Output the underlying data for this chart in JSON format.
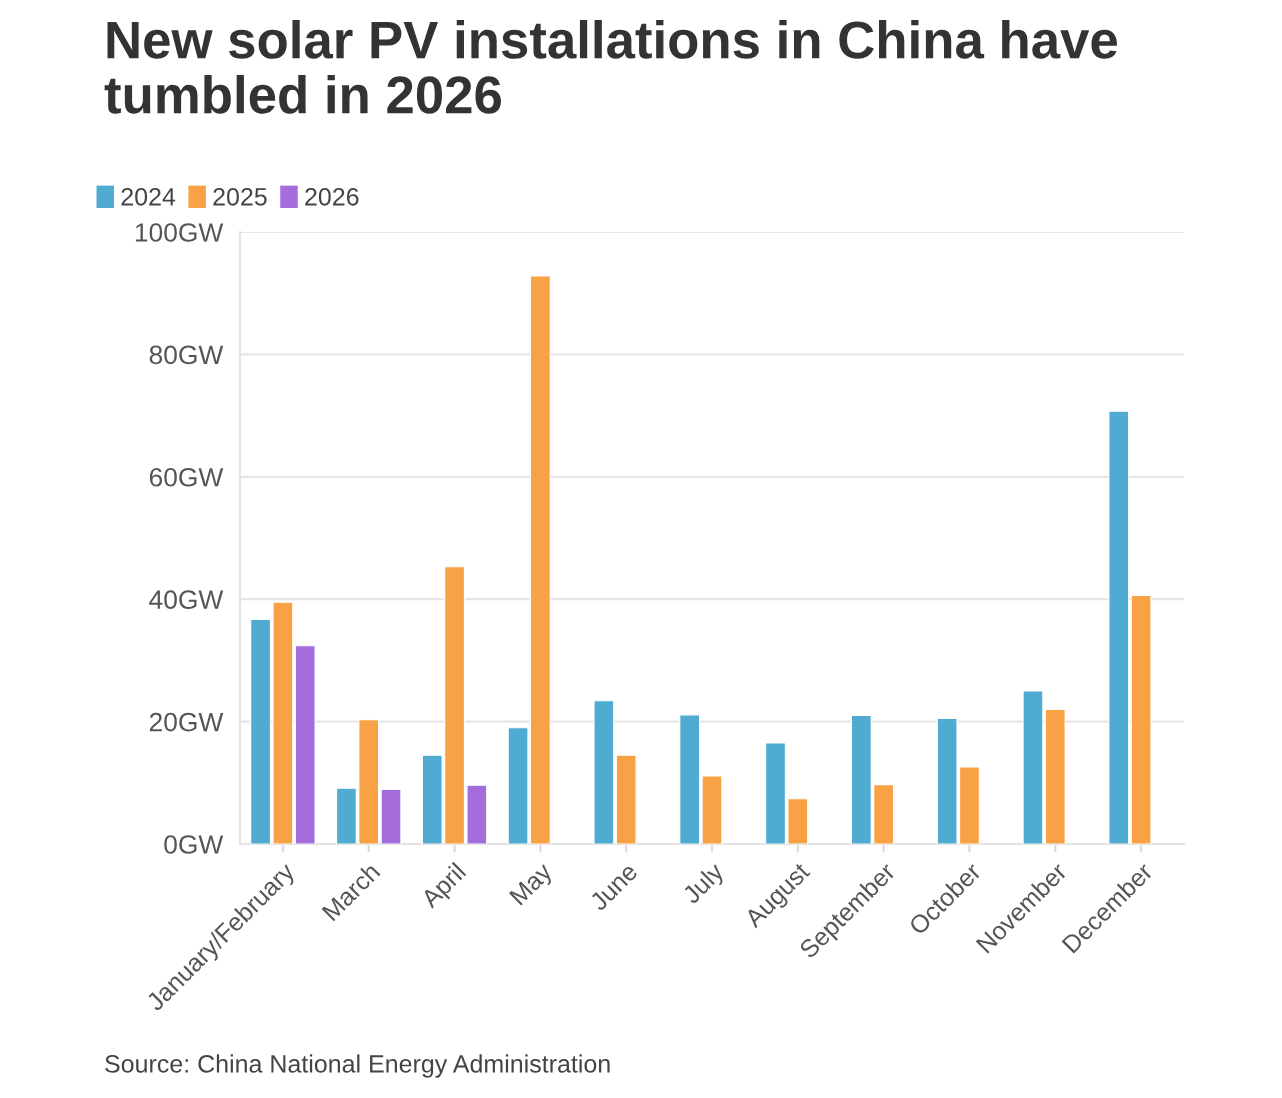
{
  "chart_data": {
    "type": "bar",
    "title": "New solar PV installations in China have tumbled in 2026",
    "categories": [
      "January/February",
      "March",
      "April",
      "May",
      "June",
      "July",
      "August",
      "September",
      "October",
      "November",
      "December"
    ],
    "series": [
      {
        "name": "2024",
        "color": "#4fabd1",
        "values": [
          36.7,
          9.1,
          14.5,
          19.0,
          23.4,
          21.1,
          16.5,
          21.0,
          20.5,
          25.0,
          70.7
        ]
      },
      {
        "name": "2025",
        "color": "#f9a245",
        "values": [
          39.5,
          20.3,
          45.3,
          92.8,
          14.5,
          11.1,
          7.4,
          9.7,
          12.6,
          22.0,
          40.6
        ]
      },
      {
        "name": "2026",
        "color": "#a56ddc",
        "values": [
          32.4,
          8.9,
          9.6,
          null,
          null,
          null,
          null,
          null,
          null,
          null,
          null
        ]
      }
    ],
    "ylim": [
      0,
      100
    ],
    "yticks": [
      {
        "value": 0,
        "label": "0GW"
      },
      {
        "value": 20,
        "label": "20GW"
      },
      {
        "value": 40,
        "label": "40GW"
      },
      {
        "value": 60,
        "label": "60GW"
      },
      {
        "value": 80,
        "label": "80GW"
      },
      {
        "value": 100,
        "label": "100GW"
      }
    ],
    "grid": "y",
    "legend": "top left",
    "annotations": [
      "Source: China National Energy Administration"
    ]
  }
}
